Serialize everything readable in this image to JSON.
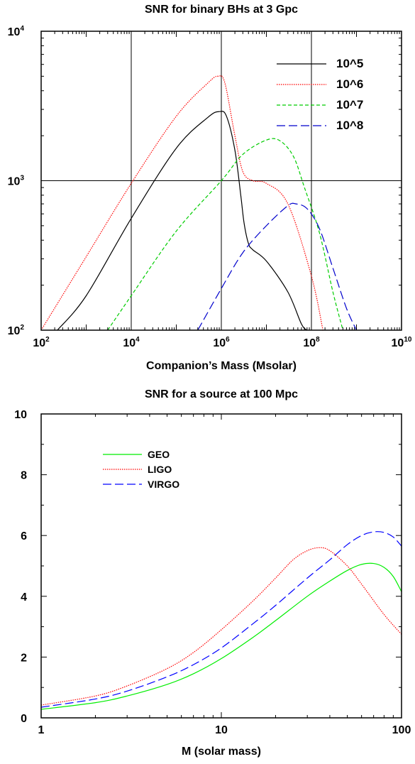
{
  "chart_data": [
    {
      "type": "line",
      "title": "SNR for binary BHs at 3 Gpc",
      "xlabel": "Companion’s Mass (Msolar)",
      "ylabel": "",
      "x_scale": "log",
      "y_scale": "log",
      "xlim": [
        100,
        10000000000
      ],
      "ylim": [
        100,
        10000
      ],
      "x_ticks": [
        {
          "base": "10",
          "exp": "2"
        },
        {
          "base": "10",
          "exp": "4"
        },
        {
          "base": "10",
          "exp": "6"
        },
        {
          "base": "10",
          "exp": "8"
        },
        {
          "base": "10",
          "exp": "10"
        }
      ],
      "y_ticks": [
        {
          "base": "10",
          "exp": "2"
        },
        {
          "base": "10",
          "exp": "3"
        },
        {
          "base": "10",
          "exp": "4"
        }
      ],
      "grid": "major lines at x=1e4, 1e6, 1e8 and y=1e3",
      "legend_position": "top-right",
      "series": [
        {
          "name": "10^5",
          "color": "#000000",
          "dash": "solid",
          "x": [
            230,
            1000,
            10000,
            100000,
            500000,
            900000,
            1300000,
            2000000,
            2700000,
            3200000,
            4000000,
            5000000,
            10000000,
            30000000,
            60000000,
            80000000
          ],
          "y": [
            100,
            170,
            560,
            1650,
            2650,
            2900,
            2700,
            1600,
            800,
            520,
            380,
            345,
            290,
            180,
            110,
            100
          ]
        },
        {
          "name": "10^6",
          "color": "#ff0000",
          "dash": "dotted",
          "x": [
            100,
            1000,
            10000,
            100000,
            500000,
            850000,
            1200000,
            2000000,
            3000000,
            5000000,
            10000000,
            30000000,
            100000000,
            180000000
          ],
          "y": [
            100,
            310,
            960,
            2700,
            4500,
            5000,
            4500,
            2000,
            1150,
            1000,
            960,
            700,
            230,
            100
          ]
        },
        {
          "name": "10^7",
          "color": "#00cc00",
          "dash": "dashed",
          "x": [
            3000,
            10000,
            100000,
            1000000,
            3000000,
            10000000,
            20000000,
            40000000,
            70000000,
            150000000,
            300000000,
            500000000
          ],
          "y": [
            100,
            170,
            460,
            1000,
            1500,
            1870,
            1850,
            1450,
            900,
            450,
            180,
            100
          ]
        },
        {
          "name": "10^8",
          "color": "#0000cc",
          "dash": "long-dashed",
          "x": [
            300000,
            1000000,
            3000000,
            10000000,
            30000000,
            45000000,
            80000000,
            150000000,
            300000000,
            600000000,
            1000000000
          ],
          "y": [
            100,
            190,
            330,
            500,
            680,
            700,
            650,
            480,
            260,
            140,
            100
          ]
        }
      ]
    },
    {
      "type": "line",
      "title": "SNR for a source at 100 Mpc",
      "xlabel": "M (solar mass)",
      "ylabel": "",
      "x_scale": "log",
      "y_scale": "linear",
      "xlim": [
        1,
        100
      ],
      "ylim": [
        0,
        10
      ],
      "x_ticks": [
        "1",
        "10",
        "100"
      ],
      "y_ticks": [
        "0",
        "2",
        "4",
        "6",
        "8",
        "10"
      ],
      "grid": "off",
      "legend_position": "top-left",
      "series": [
        {
          "name": "GEO",
          "color": "#00ee00",
          "dash": "solid",
          "x": [
            1,
            2,
            3,
            5,
            7,
            10,
            15,
            20,
            30,
            40,
            50,
            60,
            70,
            80,
            90,
            100
          ],
          "y": [
            0.28,
            0.5,
            0.72,
            1.1,
            1.45,
            1.95,
            2.65,
            3.2,
            4.0,
            4.5,
            4.85,
            5.05,
            5.08,
            4.95,
            4.65,
            4.15
          ]
        },
        {
          "name": "LIGO",
          "color": "#ff0000",
          "dash": "dotted",
          "x": [
            1,
            2,
            3,
            5,
            7,
            10,
            15,
            20,
            25,
            30,
            35,
            40,
            50,
            60,
            80,
            100
          ],
          "y": [
            0.42,
            0.72,
            1.05,
            1.62,
            2.15,
            2.9,
            3.85,
            4.6,
            5.2,
            5.5,
            5.6,
            5.5,
            5.0,
            4.4,
            3.4,
            2.75
          ]
        },
        {
          "name": "VIRGO",
          "color": "#0000ff",
          "dash": "long-dashed",
          "x": [
            1,
            2,
            3,
            5,
            7,
            10,
            15,
            20,
            30,
            40,
            50,
            60,
            70,
            80,
            90,
            100
          ],
          "y": [
            0.35,
            0.62,
            0.88,
            1.35,
            1.75,
            2.3,
            3.1,
            3.7,
            4.6,
            5.2,
            5.7,
            6.0,
            6.12,
            6.1,
            5.95,
            5.65
          ]
        }
      ]
    }
  ]
}
